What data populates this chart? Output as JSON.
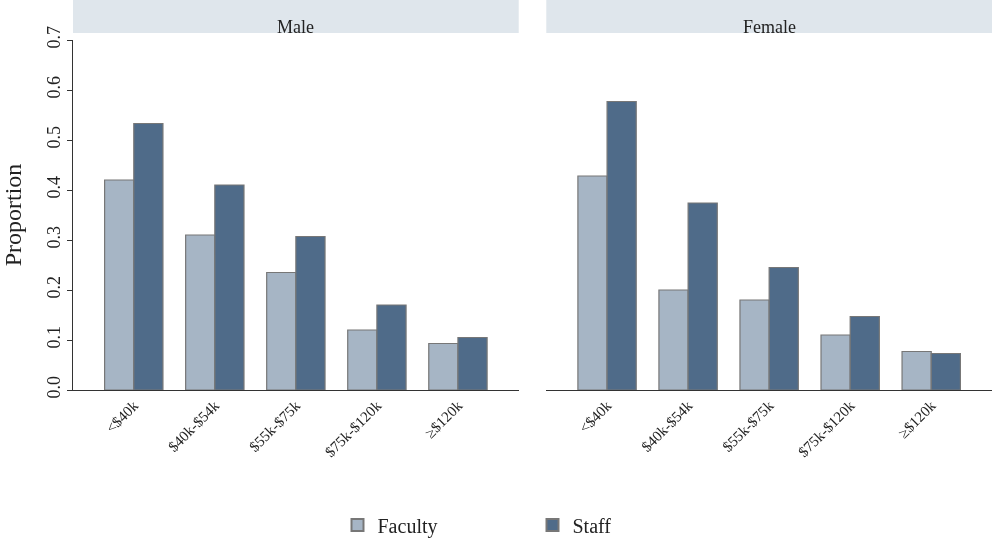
{
  "chart_data": [
    {
      "type": "bar",
      "title": "Male",
      "ylabel": "Proportion",
      "categories": [
        "<$40k",
        "$40k-$54k",
        "$55k-$75k",
        "$75k-$120k",
        "≥$120k"
      ],
      "series": [
        {
          "name": "Faculty",
          "color": "#a6b5c5",
          "values": [
            0.42,
            0.31,
            0.235,
            0.12,
            0.093
          ]
        },
        {
          "name": "Staff",
          "color": "#4f6b89",
          "values": [
            0.533,
            0.41,
            0.307,
            0.17,
            0.105
          ]
        }
      ],
      "ylim": [
        0,
        0.7
      ],
      "yticks": [
        {
          "value": 0,
          "label": "0.0"
        },
        0.1,
        0.2,
        0.3,
        0.4,
        0.5,
        0.6,
        0.7
      ],
      "legend": "bottom"
    },
    {
      "type": "bar",
      "title": "Female",
      "categories": [
        "<$40k",
        "$40k-$54k",
        "$55k-$75k",
        "$75k-$120k",
        "≥$120k"
      ],
      "series": [
        {
          "color": "#a6b5c5",
          "values": [
            0.428,
            0.2,
            0.18,
            0.11,
            0.077
          ]
        },
        {
          "color": "#4f6b89",
          "values": [
            0.577,
            0.374,
            0.245,
            0.147,
            0.073
          ]
        }
      ],
      "ylim": [
        0,
        0.7
      ],
      "yticks": [
        0,
        0.1,
        0.2,
        0.3,
        0.4,
        0.5,
        0.6,
        0.7
      ],
      "tick_labels": "x"
    }
  ]
}
